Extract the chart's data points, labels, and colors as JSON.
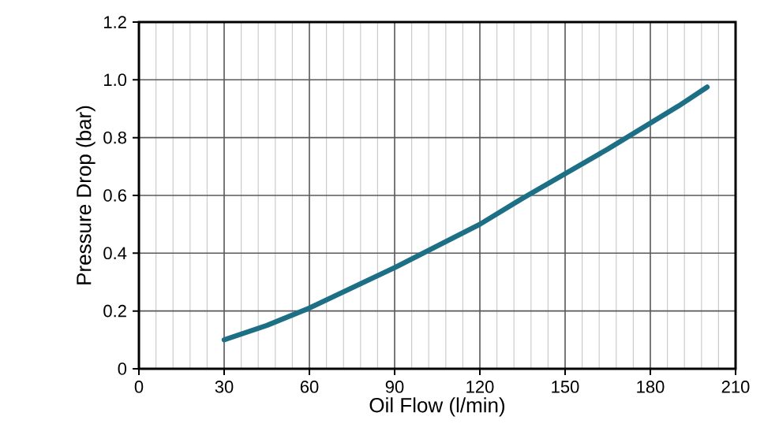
{
  "chart_data": {
    "type": "line",
    "xlabel": "Oil Flow  (l/min)",
    "ylabel": "Pressure Drop  (bar)",
    "x": [
      30,
      45,
      60,
      75,
      90,
      105,
      120,
      135,
      150,
      165,
      180,
      190,
      200
    ],
    "series": [
      {
        "color": "#1d6f86",
        "values": [
          0.1,
          0.15,
          0.21,
          0.28,
          0.35,
          0.425,
          0.5,
          0.59,
          0.675,
          0.76,
          0.85,
          0.91,
          0.975
        ]
      }
    ],
    "xlim": [
      0,
      210
    ],
    "xticks": [
      0,
      30,
      60,
      90,
      120,
      150,
      180,
      210
    ],
    "ylim": [
      0,
      1.2
    ],
    "yticks": [
      0,
      {
        "value": 0.2,
        "label": "0.2"
      },
      {
        "value": 0.4,
        "label": "0.4"
      },
      {
        "value": 0.6,
        "label": "0.6"
      },
      {
        "value": 0.8,
        "label": "0.8"
      },
      {
        "value": 1.0,
        "label": "1.0"
      },
      {
        "value": 1.2,
        "label": "1.2"
      }
    ],
    "grid": true,
    "marker": "none",
    "line_style": "solid"
  }
}
